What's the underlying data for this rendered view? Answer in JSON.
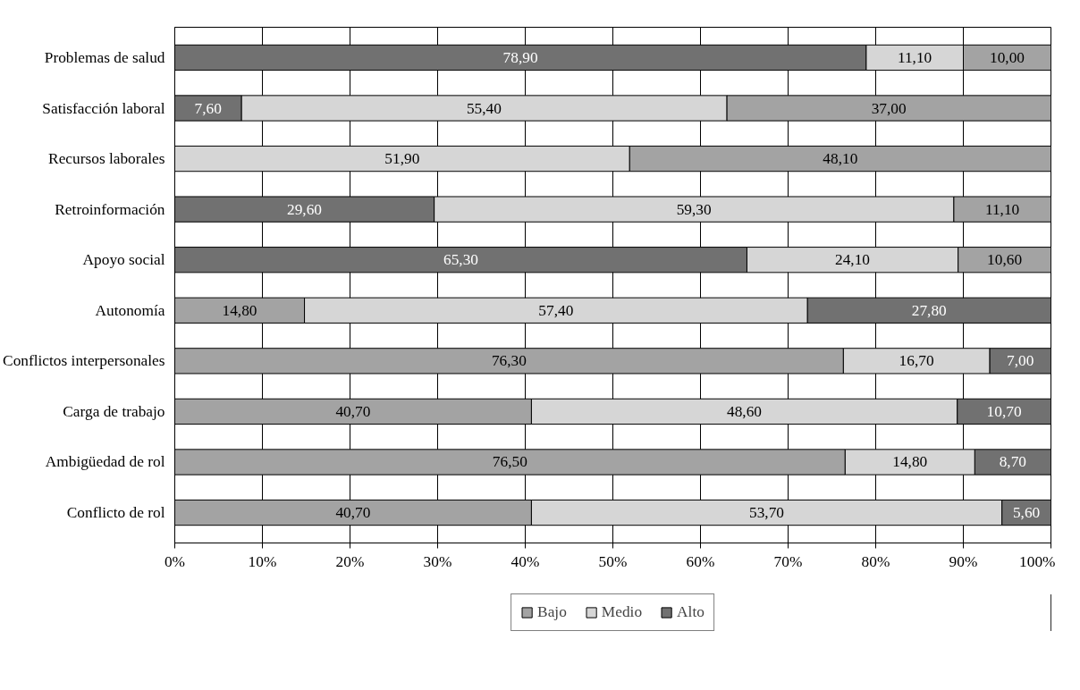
{
  "chart_data": {
    "type": "bar",
    "orientation": "horizontal",
    "stacked": true,
    "categories": [
      "Problemas de salud",
      "Satisfacción laboral",
      "Recursos laborales",
      "Retroinformación",
      "Apoyo social",
      "Autonomía",
      "Conflictos interpersonales",
      "Carga de trabajo",
      "Ambigüedad de rol",
      "Conflicto de rol"
    ],
    "series": [
      {
        "color": "#717171",
        "values": [
          78.9,
          7.6,
          null,
          29.6,
          65.3,
          null,
          null,
          null,
          null,
          null
        ],
        "value_labels": [
          "78,90",
          "7,60",
          null,
          "29,60",
          "65,30",
          null,
          null,
          null,
          null,
          null
        ]
      },
      {
        "name": "Bajo",
        "color": "#a3a3a3",
        "values": [
          null,
          null,
          null,
          null,
          null,
          14.8,
          76.3,
          40.7,
          76.5,
          40.7
        ],
        "value_labels": [
          null,
          null,
          null,
          null,
          null,
          "14,80",
          "76,30",
          "40,70",
          "76,50",
          "40,70"
        ]
      },
      {
        "name": "Medio",
        "color": "#d6d6d6",
        "values": [
          11.1,
          55.4,
          51.9,
          59.3,
          24.1,
          57.4,
          16.7,
          48.6,
          14.8,
          53.7
        ],
        "value_labels": [
          "11,10",
          "55,40",
          "51,90",
          "59,30",
          "24,10",
          "57,40",
          "16,70",
          "48,60",
          "14,80",
          "53,70"
        ]
      },
      {
        "color": "#a3a3a3",
        "values": [
          10.0,
          37.0,
          48.1,
          11.1,
          10.6,
          null,
          null,
          null,
          null,
          null
        ],
        "value_labels": [
          "10,00",
          "37,00",
          "48,10",
          "11,10",
          "10,60",
          null,
          null,
          null,
          null,
          null
        ]
      },
      {
        "name": "Alto",
        "color": "#717171",
        "values": [
          null,
          null,
          null,
          null,
          null,
          27.8,
          7.0,
          10.7,
          8.7,
          5.6
        ],
        "value_labels": [
          null,
          null,
          null,
          null,
          null,
          "27,80",
          "7,00",
          "10,70",
          "8,70",
          "5,60"
        ]
      }
    ],
    "xlim": [
      0,
      100
    ],
    "xticks": [
      {
        "value": 0,
        "label": "0%"
      },
      {
        "value": 10,
        "label": "10%"
      },
      {
        "value": 20,
        "label": "20%"
      },
      {
        "value": 30,
        "label": "30%"
      },
      {
        "value": 40,
        "label": "40%"
      },
      {
        "value": 50,
        "label": "50%"
      },
      {
        "value": 60,
        "label": "60%"
      },
      {
        "value": 70,
        "label": "70%"
      },
      {
        "value": 80,
        "label": "80%"
      },
      {
        "value": 90,
        "label": "90%"
      },
      {
        "value": 100,
        "label": "100%"
      }
    ],
    "grid": "x",
    "legend": "bottom"
  }
}
